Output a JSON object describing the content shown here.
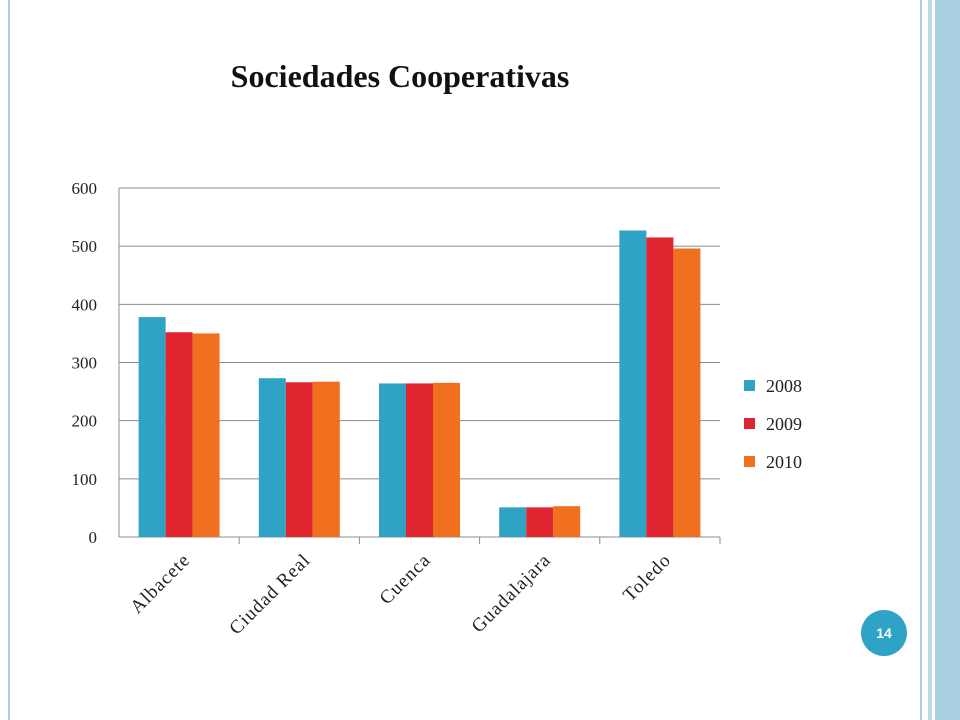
{
  "slide": {
    "page_number": "14"
  },
  "colors": {
    "series": [
      "#2ea3c6",
      "#e02530",
      "#f07020"
    ],
    "frame": "#a9cfe0",
    "badge": "#2ea3c6"
  },
  "chart_data": {
    "type": "bar",
    "title": "Sociedades Cooperativas",
    "xlabel": "",
    "ylabel": "",
    "categories": [
      "Albacete",
      "Ciudad Real",
      "Cuenca",
      "Guadalajara",
      "Toledo"
    ],
    "series": [
      {
        "name": "2008",
        "values": [
          378,
          273,
          264,
          51,
          527
        ]
      },
      {
        "name": "2009",
        "values": [
          352,
          266,
          264,
          51,
          515
        ]
      },
      {
        "name": "2010",
        "values": [
          350,
          267,
          265,
          53,
          496
        ]
      }
    ],
    "ylim": [
      0,
      600
    ],
    "yticks": [
      0,
      100,
      200,
      300,
      400,
      500,
      600
    ],
    "grid": true,
    "legend": "right"
  }
}
